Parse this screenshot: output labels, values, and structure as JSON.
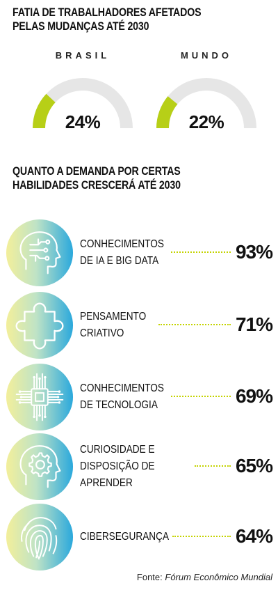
{
  "section1": {
    "title_line1": "FATIA DE TRABALHADORES AFETADOS",
    "title_line2": "PELAS MUDANÇAS ATÉ 2030"
  },
  "section2": {
    "title_line1": "QUANTO A DEMANDA POR CERTAS",
    "title_line2": "HABILIDADES CRESCERÁ ATÉ 2030"
  },
  "colors": {
    "accent": "#b7cf17",
    "track": "#e6e6e6",
    "dots": "#c4d300",
    "gradient_yellow": "#f3ef9a",
    "gradient_blue": "#2aa8dc"
  },
  "chart_data": [
    {
      "type": "gauge",
      "title": "FATIA DE TRABALHADORES AFETADOS PELAS MUDANÇAS ATÉ 2030",
      "categories": [
        "BRASIL",
        "MUNDO"
      ],
      "values": [
        24,
        22
      ],
      "value_labels": [
        "24%",
        "22%"
      ],
      "unit": "%",
      "ylim": [
        0,
        100
      ]
    },
    {
      "type": "bar",
      "title": "QUANTO A DEMANDA POR CERTAS HABILIDADES CRESCERÁ ATÉ 2030",
      "categories": [
        [
          "CONHECIMENTOS",
          "DE IA E BIG DATA"
        ],
        [
          "PENSAMENTO",
          "CRIATIVO"
        ],
        [
          "CONHECIMENTOS",
          "DE TECNOLOGIA"
        ],
        [
          "CURIOSIDADE E",
          "DISPOSIÇÃO DE",
          "APRENDER"
        ],
        [
          "CIBERSEGURANÇA"
        ]
      ],
      "values": [
        93,
        71,
        69,
        65,
        64
      ],
      "value_labels": [
        "93%",
        "71%",
        "69%",
        "65%",
        "64%"
      ],
      "icons": [
        "ai-head-icon",
        "puzzle-icon",
        "chip-icon",
        "gear-head-icon",
        "fingerprint-icon"
      ],
      "unit": "%"
    }
  ],
  "source": {
    "prefix": "Fonte: ",
    "name": "Fórum Econômico Mundial"
  }
}
